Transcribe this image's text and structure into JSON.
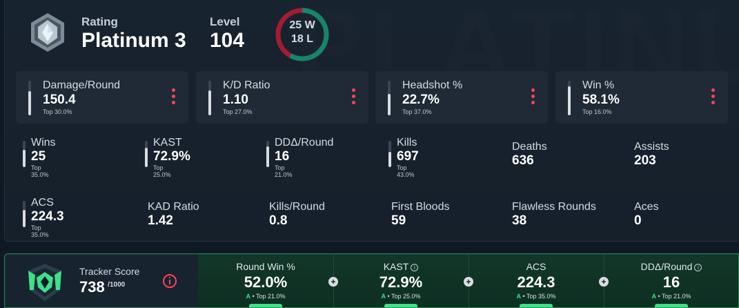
{
  "header": {
    "rating_label": "Rating",
    "rating_value": "Platinum 3",
    "level_label": "Level",
    "level_value": "104",
    "wins_text": "25 W",
    "losses_text": "18 L",
    "watermark": "PLATINUM",
    "win_fraction": 0.581
  },
  "cards": [
    {
      "label": "Damage/Round",
      "value": "150.4",
      "top": "Top 30.0%",
      "fill": 0.7
    },
    {
      "label": "K/D Ratio",
      "value": "1.10",
      "top": "Top 27.0%",
      "fill": 0.73
    },
    {
      "label": "Headshot %",
      "value": "22.7%",
      "top": "Top 37.0%",
      "fill": 0.63
    },
    {
      "label": "Win %",
      "value": "58.1%",
      "top": "Top 16.0%",
      "fill": 0.84
    }
  ],
  "stats_row1": [
    {
      "label": "Wins",
      "value": "25",
      "top": "Top 35.0%",
      "fill": 0.65
    },
    {
      "label": "KAST",
      "value": "72.9%",
      "top": "Top 25.0%",
      "fill": 0.75
    },
    {
      "label": "DDΔ/Round",
      "value": "16",
      "top": "Top 21.0%",
      "fill": 0.79
    },
    {
      "label": "Kills",
      "value": "697",
      "top": "Top 43.0%",
      "fill": 0.57
    },
    {
      "label": "Deaths",
      "value": "636"
    },
    {
      "label": "Assists",
      "value": "203"
    }
  ],
  "stats_row2": [
    {
      "label": "ACS",
      "value": "224.3",
      "top": "Top 35.0%",
      "fill": 0.65
    },
    {
      "label": "KAD Ratio",
      "value": "1.42"
    },
    {
      "label": "Kills/Round",
      "value": "0.8"
    },
    {
      "label": "First Bloods",
      "value": "59"
    },
    {
      "label": "Flawless Rounds",
      "value": "38"
    },
    {
      "label": "Aces",
      "value": "0"
    }
  ],
  "tracker": {
    "label": "Tracker Score",
    "score": "738",
    "max": "/1000",
    "columns": [
      {
        "label": "Round Win %",
        "value": "52.0%",
        "grade": "A",
        "top": " • Top 21.0%",
        "info": false
      },
      {
        "label": "KAST",
        "value": "72.9%",
        "grade": "A",
        "top": " • Top 25.0%",
        "info": true
      },
      {
        "label": "ACS",
        "value": "224.3",
        "grade": "A",
        "top": " • Top 35.0%",
        "info": false
      },
      {
        "label": "DDΔ/Round",
        "value": "16",
        "grade": "A",
        "top": " • Top 21.0%",
        "info": true
      }
    ]
  },
  "colors": {
    "accent_red": "#ff4655",
    "accent_green": "#3ee089",
    "win_ring": "#15866a",
    "loss_ring": "#a11d2e"
  },
  "icons": [
    "platinum-rank-icon",
    "more-vertical-icon",
    "tracker-shield-icon",
    "info-icon",
    "plus-icon"
  ]
}
